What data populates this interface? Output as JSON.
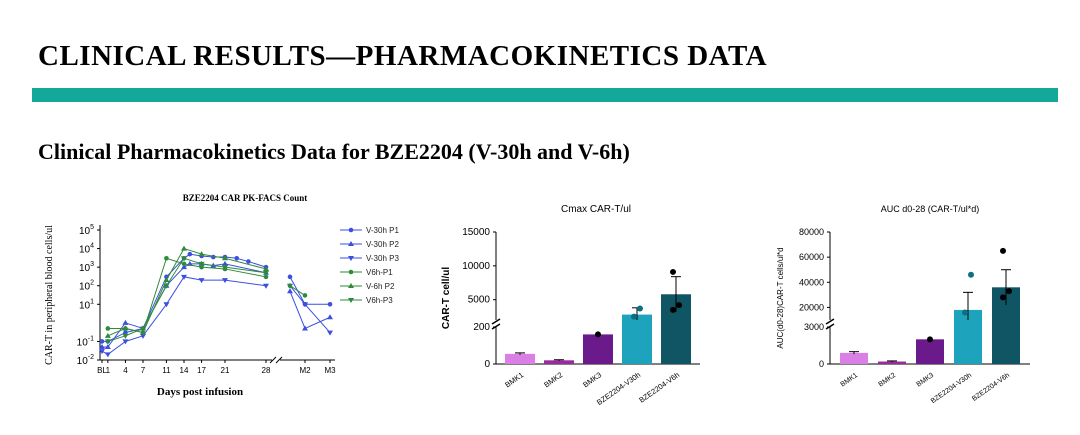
{
  "header": {
    "title": "CLINICAL RESULTS—PHARMACOKINETICS DATA",
    "subtitle": "Clinical Pharmacokinetics Data for BZE2204 (V-30h and V-6h)"
  },
  "colors": {
    "accent_bar": "#14a89a",
    "v30h": "#3b4fe0",
    "v6h": "#2e8b3a",
    "bmk1": "#d97fe6",
    "bmk2": "#9a2a9e",
    "bmk3": "#6a1a8a",
    "v30h_bar": "#1ea3bd",
    "v6h_bar": "#0f5563"
  },
  "chart_data": [
    {
      "type": "line",
      "title": "BZE2204 CAR PK-FACS Count",
      "xlabel": "Days post infusion",
      "ylabel": "CAR-T in peripheral blood cells/ul",
      "scale": "log",
      "ylim_exp": [
        -2,
        5
      ],
      "ytick_labels": [
        {
          "base": "10",
          "exp": "5"
        },
        {
          "base": "10",
          "exp": "4"
        },
        {
          "base": "10",
          "exp": "3"
        },
        {
          "base": "10",
          "exp": "2"
        },
        {
          "base": "10",
          "exp": "1"
        },
        {
          "base": "10",
          "exp": "-1"
        },
        {
          "base": "10",
          "exp": "-2"
        }
      ],
      "x_labels": [
        "BL",
        "1",
        "4",
        "7",
        "11",
        "14",
        "17",
        "21",
        "28",
        "M2",
        "M3"
      ],
      "legend_position": "right",
      "series": [
        {
          "name": "V-30h P1",
          "color": "#3b4fe0",
          "marker": "circle",
          "segments": [
            [
              [
                0,
                0.1
              ],
              [
                1,
                0.1
              ],
              [
                4,
                0.3
              ],
              [
                7,
                0.5
              ],
              [
                11,
                300
              ],
              [
                14,
                3000
              ],
              [
                15,
                5000
              ],
              [
                17,
                4000
              ],
              [
                19,
                3500
              ],
              [
                21,
                3500
              ],
              [
                23,
                3000
              ],
              [
                25,
                2000
              ],
              [
                28,
                1000
              ]
            ],
            [
              [
                "M1",
                300
              ],
              [
                "M2",
                10
              ],
              [
                "M3",
                10
              ]
            ]
          ]
        },
        {
          "name": "V-30h P2",
          "color": "#3b4fe0",
          "marker": "triangle-up",
          "segments": [
            [
              [
                0,
                0.05
              ],
              [
                1,
                0.05
              ],
              [
                4,
                1
              ],
              [
                7,
                0.5
              ],
              [
                11,
                100
              ],
              [
                14,
                1000
              ],
              [
                15,
                1500
              ],
              [
                17,
                1500
              ],
              [
                19,
                1200
              ],
              [
                21,
                1500
              ],
              [
                28,
                500
              ]
            ],
            [
              [
                "M1",
                50
              ],
              [
                "M2",
                0.5
              ],
              [
                "M3",
                2
              ]
            ]
          ]
        },
        {
          "name": "V-30h P3",
          "color": "#3b4fe0",
          "marker": "triangle-down",
          "segments": [
            [
              [
                0,
                0.03
              ],
              [
                1,
                0.02
              ],
              [
                4,
                0.1
              ],
              [
                7,
                0.2
              ],
              [
                11,
                10
              ],
              [
                14,
                300
              ],
              [
                17,
                200
              ],
              [
                21,
                200
              ],
              [
                28,
                100
              ]
            ],
            [
              [
                "M1",
                100
              ],
              [
                "M2",
                10
              ],
              [
                "M3",
                0.3
              ]
            ]
          ]
        },
        {
          "name": "V6h-P1",
          "color": "#2e8b3a",
          "marker": "circle",
          "segments": [
            [
              [
                1,
                0.5
              ],
              [
                4,
                0.5
              ],
              [
                7,
                0.3
              ],
              [
                11,
                3000
              ],
              [
                14,
                1500
              ],
              [
                17,
                1000
              ],
              [
                21,
                800
              ],
              [
                28,
                300
              ]
            ],
            [
              [
                "M1",
                100
              ],
              [
                "M2",
                30
              ]
            ]
          ]
        },
        {
          "name": "V-6h P2",
          "color": "#2e8b3a",
          "marker": "triangle-up",
          "segments": [
            [
              [
                1,
                0.2
              ],
              [
                4,
                0.5
              ],
              [
                7,
                0.3
              ],
              [
                11,
                200
              ],
              [
                14,
                10000
              ],
              [
                17,
                5000
              ],
              [
                21,
                3000
              ],
              [
                28,
                800
              ]
            ]
          ]
        },
        {
          "name": "V6h-P3",
          "color": "#2e8b3a",
          "marker": "triangle-down",
          "segments": [
            [
              [
                1,
                0.1
              ],
              [
                4,
                0.2
              ],
              [
                7,
                0.5
              ],
              [
                11,
                100
              ],
              [
                14,
                3000
              ],
              [
                17,
                1500
              ],
              [
                21,
                1000
              ],
              [
                28,
                500
              ]
            ]
          ]
        }
      ]
    },
    {
      "type": "bar",
      "title": "Cmax CAR-T/ul",
      "ylabel": "CAR-T cell/ul",
      "axis_break": true,
      "ylim_lower": [
        0,
        200
      ],
      "ylim_upper": [
        2000,
        15000
      ],
      "yticks_lower": [
        "0",
        "200"
      ],
      "yticks_upper": [
        "5000",
        "10000",
        "15000"
      ],
      "categories": [
        "BMK1",
        "BMK2",
        "BMK3",
        "BZE2204-V30h",
        "BZE2204-V6h"
      ],
      "values": [
        55,
        20,
        160,
        2800,
        5800
      ],
      "errors": [
        5,
        3,
        0,
        1000,
        2600
      ],
      "points": [
        [],
        [],
        [
          160
        ],
        [
          2500,
          3700
        ],
        [
          3500,
          4200,
          9100
        ]
      ]
    },
    {
      "type": "bar",
      "title": "AUC d0-28 (CAR-T/ul*d)",
      "ylabel": "AUC(d0-28)CAR-T cells/ul*d",
      "axis_break": true,
      "ylim_lower": [
        0,
        3000
      ],
      "ylim_upper": [
        10000,
        80000
      ],
      "yticks_lower": [
        "0",
        "3000"
      ],
      "yticks_upper": [
        "20000",
        "40000",
        "60000",
        "80000"
      ],
      "categories": [
        "BMK1",
        "BMK2",
        "BMK3",
        "BZE2204-V30h",
        "BZE2204-V6h"
      ],
      "values": [
        900,
        200,
        2000,
        18000,
        36000
      ],
      "errors": [
        100,
        50,
        0,
        14000,
        14000
      ],
      "points": [
        [],
        [],
        [
          2000
        ],
        [
          16000,
          46000
        ],
        [
          28000,
          33000,
          65000
        ]
      ]
    }
  ]
}
